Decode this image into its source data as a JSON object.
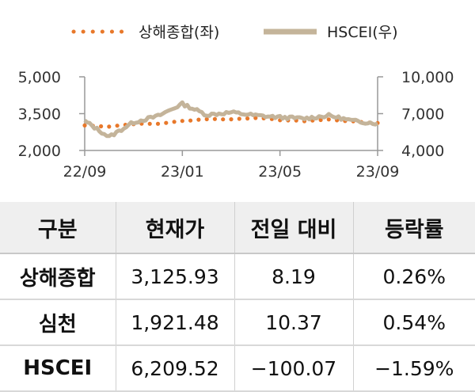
{
  "chart_data": {
    "type": "line",
    "legend": {
      "placement": "top",
      "entries": [
        "상해종합(좌)",
        "HSCEI(우)"
      ]
    },
    "x_ticks": [
      "22/09",
      "23/01",
      "23/05",
      "23/09"
    ],
    "y_left": {
      "ticks": [
        "5,000",
        "3,500",
        "2,000"
      ],
      "range": [
        2000,
        5000
      ]
    },
    "y_right": {
      "ticks": [
        "10,000",
        "7,000",
        "4,000"
      ],
      "range": [
        4000,
        10000
      ]
    },
    "grid": false,
    "series": [
      {
        "name": "상해종합(좌)",
        "axis": "left",
        "style": "dotted",
        "color": "#e8782a",
        "x": [
          "22/09",
          "22/10",
          "22/11",
          "22/12",
          "23/01",
          "23/02",
          "23/03",
          "23/04",
          "23/05",
          "23/06",
          "23/07",
          "23/08",
          "23/09"
        ],
        "values": [
          3020,
          2975,
          3080,
          3090,
          3200,
          3280,
          3270,
          3330,
          3240,
          3200,
          3260,
          3180,
          3120
        ]
      },
      {
        "name": "HSCEI(우)",
        "axis": "right",
        "style": "solid-thick",
        "color": "#c4b49a",
        "x": [
          "22/09",
          "22/10",
          "22/11",
          "22/12",
          "23/01",
          "23/02",
          "23/03",
          "23/04",
          "23/05",
          "23/06",
          "23/07",
          "23/08",
          "23/09"
        ],
        "values": [
          6400,
          5100,
          6300,
          6800,
          7800,
          6900,
          7100,
          6850,
          6700,
          6600,
          6850,
          6400,
          6210
        ]
      }
    ]
  },
  "table": {
    "headers": [
      "구분",
      "현재가",
      "전일 대비",
      "등락률"
    ],
    "rows": [
      {
        "name": "상해종합",
        "price": "3,125.93",
        "change": "8.19",
        "rate": "0.26%"
      },
      {
        "name": "심천",
        "price": "1,921.48",
        "change": "10.37",
        "rate": "0.54%"
      },
      {
        "name": "HSCEI",
        "price": "6,209.52",
        "change": "−100.07",
        "rate": "−1.59%"
      }
    ]
  }
}
